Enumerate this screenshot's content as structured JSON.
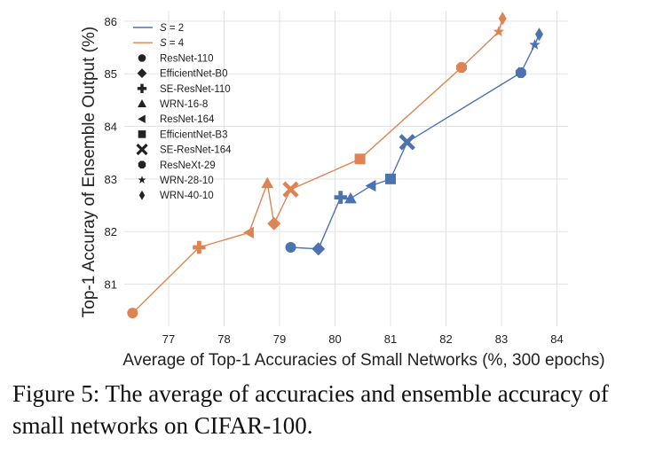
{
  "chart_data": {
    "type": "line",
    "title": "",
    "xlabel": "Average of Top-1 Accuracies of Small Networks (%, 300 epochs)",
    "ylabel": "Top-1 Accuray of Ensemble Output (%)",
    "xlim": [
      76.2,
      84.2
    ],
    "ylim": [
      80.2,
      86.2
    ],
    "x_ticks": [
      77,
      78,
      79,
      80,
      81,
      82,
      83,
      84
    ],
    "y_ticks": [
      81,
      82,
      83,
      84,
      85,
      86
    ],
    "grid": true,
    "legend_position": "top-left",
    "series": [
      {
        "name": "S = 2",
        "name_var": "S",
        "name_value": " = 2",
        "color": "#4c72b0",
        "points": [
          {
            "model": "ResNet-110",
            "x": 79.2,
            "y": 81.7
          },
          {
            "model": "EfficientNet-B0",
            "x": 79.7,
            "y": 81.67
          },
          {
            "model": "SE-ResNet-110",
            "x": 80.1,
            "y": 82.65
          },
          {
            "model": "WRN-16-8",
            "x": 80.28,
            "y": 82.63
          },
          {
            "model": "ResNet-164",
            "x": 80.65,
            "y": 82.87
          },
          {
            "model": "EfficientNet-B3",
            "x": 81.0,
            "y": 83.0
          },
          {
            "model": "SE-ResNet-164",
            "x": 81.3,
            "y": 83.7
          },
          {
            "model": "ResNeXt-29",
            "x": 83.35,
            "y": 85.02
          },
          {
            "model": "WRN-28-10",
            "x": 83.6,
            "y": 85.55
          },
          {
            "model": "WRN-40-10",
            "x": 83.68,
            "y": 85.75
          }
        ]
      },
      {
        "name": "S = 4",
        "name_var": "S",
        "name_value": " = 4",
        "color": "#dd8452",
        "points": [
          {
            "model": "ResNet-110",
            "x": 76.35,
            "y": 80.45
          },
          {
            "model": "SE-ResNet-110",
            "x": 77.55,
            "y": 81.7
          },
          {
            "model": "ResNet-164",
            "x": 78.45,
            "y": 81.98
          },
          {
            "model": "WRN-16-8",
            "x": 78.78,
            "y": 82.92
          },
          {
            "model": "EfficientNet-B0",
            "x": 78.9,
            "y": 82.15
          },
          {
            "model": "SE-ResNet-164",
            "x": 79.2,
            "y": 82.8
          },
          {
            "model": "EfficientNet-B3",
            "x": 80.45,
            "y": 83.38
          },
          {
            "model": "ResNeXt-29",
            "x": 82.28,
            "y": 85.12
          },
          {
            "model": "WRN-28-10",
            "x": 82.95,
            "y": 85.8
          },
          {
            "model": "WRN-40-10",
            "x": 83.02,
            "y": 86.05
          }
        ]
      }
    ],
    "marker_legend": [
      {
        "model": "ResNet-110",
        "marker": "circle",
        "symbol": "●"
      },
      {
        "model": "EfficientNet-B0",
        "marker": "diamond",
        "symbol": "◆"
      },
      {
        "model": "SE-ResNet-110",
        "marker": "plus",
        "symbol": "✚"
      },
      {
        "model": "WRN-16-8",
        "marker": "triangle-up",
        "symbol": "▲"
      },
      {
        "model": "ResNet-164",
        "marker": "triangle-left",
        "symbol": "◀"
      },
      {
        "model": "EfficientNet-B3",
        "marker": "square",
        "symbol": "■"
      },
      {
        "model": "SE-ResNet-164",
        "marker": "x",
        "symbol": "✖"
      },
      {
        "model": "ResNeXt-29",
        "marker": "octagon",
        "symbol": "⯃"
      },
      {
        "model": "WRN-28-10",
        "marker": "star",
        "symbol": "★"
      },
      {
        "model": "WRN-40-10",
        "marker": "thin-diamond",
        "symbol": "♦"
      }
    ]
  },
  "caption": {
    "text": "Figure 5: The average of accuracies and ensemble accuracy of small networks on CIFAR-100."
  }
}
